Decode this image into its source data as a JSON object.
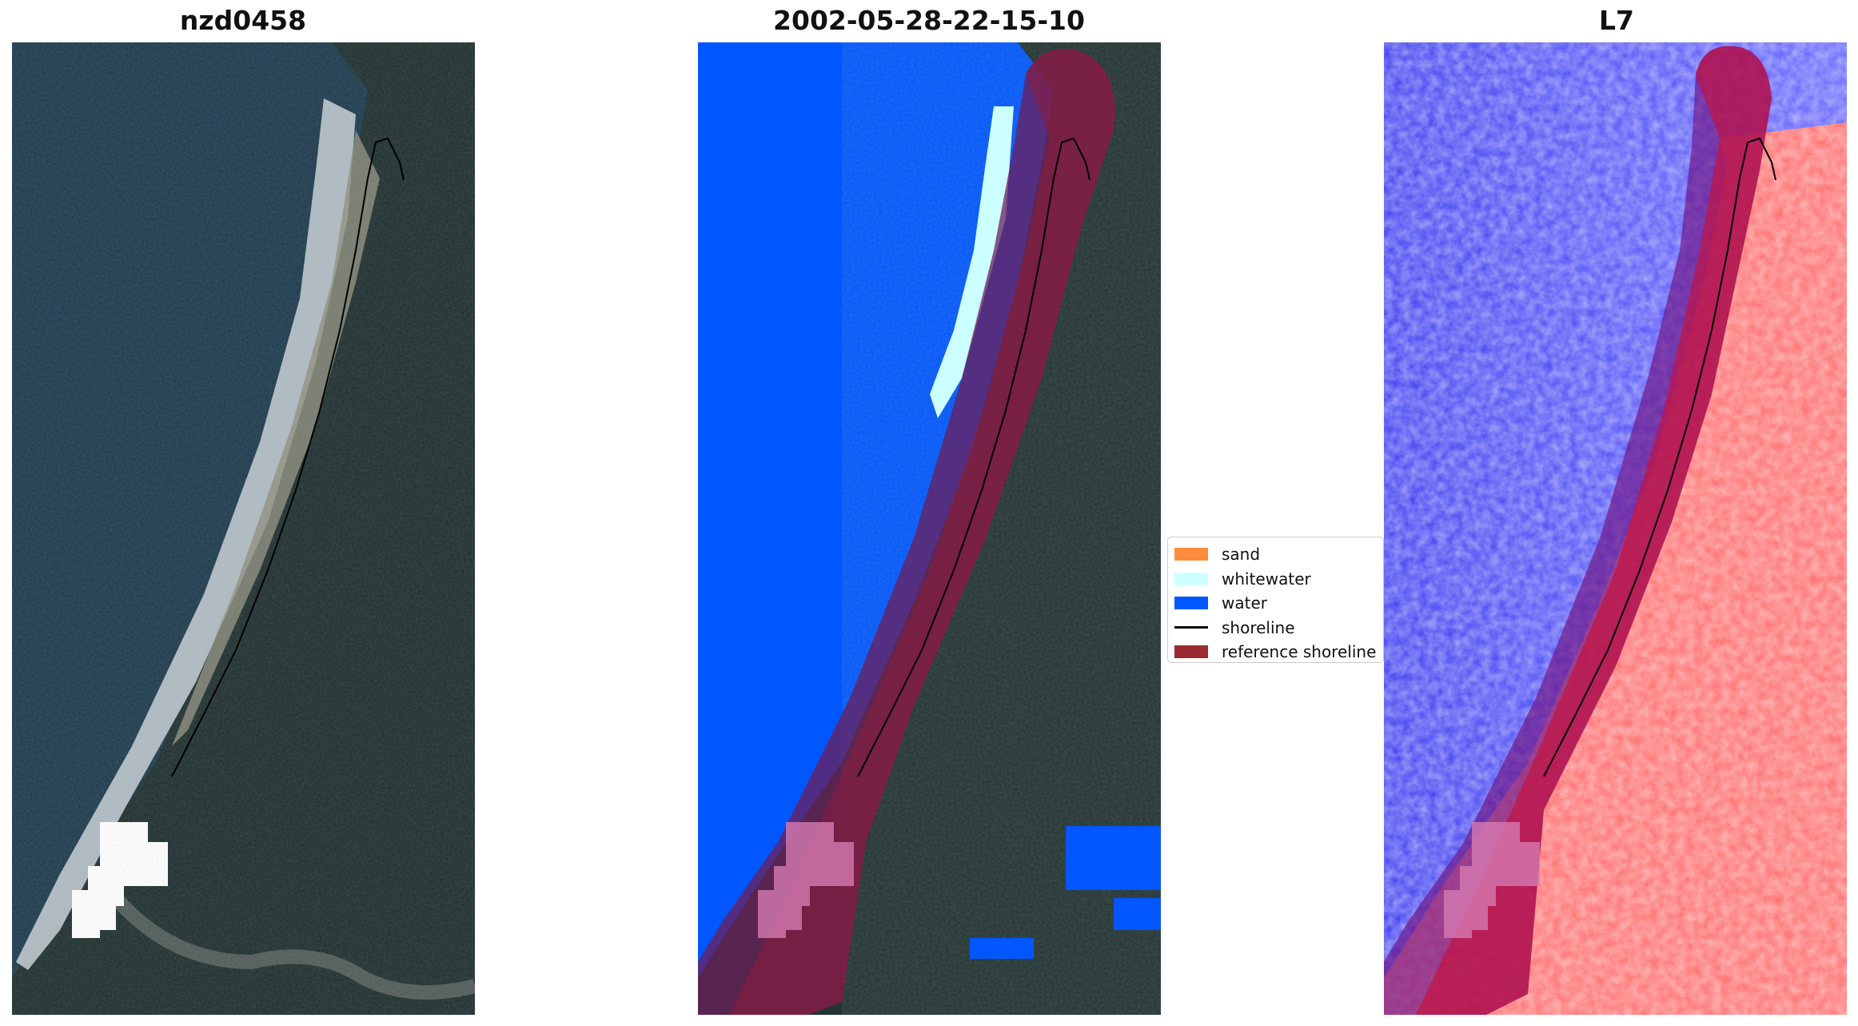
{
  "panels": {
    "rgb": {
      "title": "nzd0458"
    },
    "classified": {
      "title": "2002-05-28-22-15-10"
    },
    "index": {
      "title": "L7"
    }
  },
  "legend": {
    "items": [
      {
        "label": "sand",
        "color": "#ff8c3a",
        "kind": "patch"
      },
      {
        "label": "whitewater",
        "color": "#ccffff",
        "kind": "patch"
      },
      {
        "label": "water",
        "color": "#0057ff",
        "kind": "patch"
      },
      {
        "label": "shoreline",
        "color": "#000000",
        "kind": "line"
      },
      {
        "label": "reference shoreline",
        "color": "#9b2b30",
        "kind": "patch"
      }
    ]
  }
}
